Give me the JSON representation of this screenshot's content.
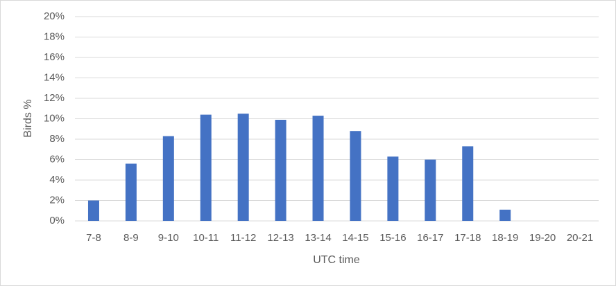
{
  "chart_data": {
    "type": "bar",
    "x_label": "UTC time",
    "y_label": "Birds %",
    "categories": [
      "7-8",
      "8-9",
      "9-10",
      "10-11",
      "11-12",
      "12-13",
      "13-14",
      "14-15",
      "15-16",
      "16-17",
      "17-18",
      "18-19",
      "19-20",
      "20-21"
    ],
    "values": [
      2.0,
      5.6,
      8.3,
      10.4,
      10.5,
      9.9,
      10.3,
      8.8,
      6.3,
      6.0,
      7.3,
      1.1,
      0,
      0
    ],
    "color": "#4472c4",
    "ylim": [
      0,
      20
    ],
    "yticks": [
      {
        "value": 0,
        "label": "0%"
      },
      {
        "value": 2,
        "label": "2%"
      },
      {
        "value": 4,
        "label": "4%"
      },
      {
        "value": 6,
        "label": "6%"
      },
      {
        "value": 8,
        "label": "8%"
      },
      {
        "value": 10,
        "label": "10%"
      },
      {
        "value": 12,
        "label": "12%"
      },
      {
        "value": 14,
        "label": "14%"
      },
      {
        "value": 16,
        "label": "16%"
      },
      {
        "value": 18,
        "label": "18%"
      },
      {
        "value": 20,
        "label": "20%"
      }
    ],
    "grid": true
  }
}
